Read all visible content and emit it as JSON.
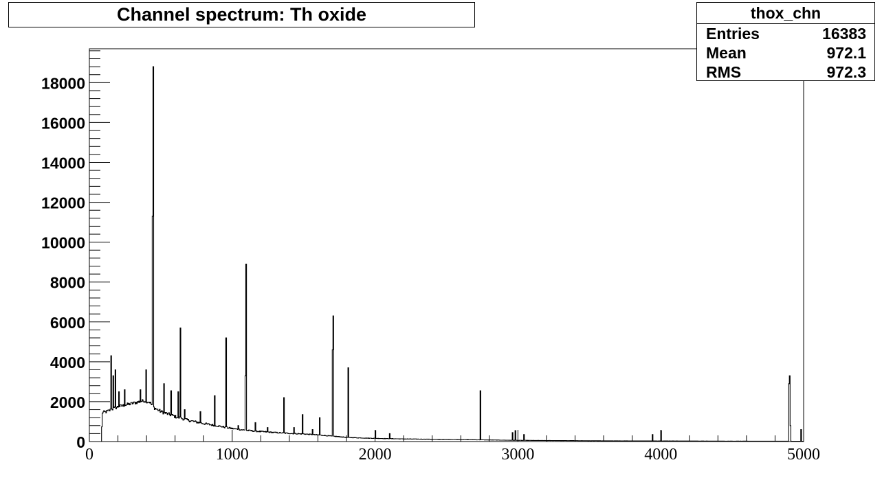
{
  "chart_data": {
    "type": "histogram",
    "title": "Channel spectrum: Th oxide",
    "xlabel": "",
    "ylabel": "",
    "xlim": [
      0,
      5000
    ],
    "ylim": [
      0,
      19700
    ],
    "xticks": [
      0,
      1000,
      2000,
      3000,
      4000,
      5000
    ],
    "yticks": [
      0,
      2000,
      4000,
      6000,
      8000,
      10000,
      12000,
      14000,
      16000,
      18000
    ],
    "xtick_labels": [
      "0",
      "1000",
      "2000",
      "3000",
      "4000",
      "5000"
    ],
    "ytick_labels": [
      "0",
      "2000",
      "4000",
      "6000",
      "8000",
      "10000",
      "12000",
      "14000",
      "16000",
      "18000"
    ],
    "grid": false,
    "continuum": [
      [
        0,
        0
      ],
      [
        80,
        0
      ],
      [
        90,
        1450
      ],
      [
        120,
        1500
      ],
      [
        150,
        1600
      ],
      [
        200,
        1750
      ],
      [
        260,
        1850
      ],
      [
        320,
        1950
      ],
      [
        380,
        2050
      ],
      [
        420,
        1980
      ],
      [
        450,
        1700
      ],
      [
        500,
        1500
      ],
      [
        600,
        1250
      ],
      [
        700,
        1050
      ],
      [
        800,
        900
      ],
      [
        900,
        780
      ],
      [
        1000,
        650
      ],
      [
        1100,
        560
      ],
      [
        1200,
        500
      ],
      [
        1300,
        450
      ],
      [
        1400,
        410
      ],
      [
        1500,
        380
      ],
      [
        1600,
        330
      ],
      [
        1700,
        270
      ],
      [
        1800,
        210
      ],
      [
        1900,
        180
      ],
      [
        2000,
        160
      ],
      [
        2200,
        130
      ],
      [
        2500,
        110
      ],
      [
        2800,
        80
      ],
      [
        3000,
        60
      ],
      [
        3500,
        40
      ],
      [
        4000,
        30
      ],
      [
        4500,
        22
      ],
      [
        4880,
        20
      ],
      [
        5000,
        15
      ]
    ],
    "peaks": [
      {
        "x": 148,
        "y": 4300
      },
      {
        "x": 165,
        "y": 3300
      },
      {
        "x": 178,
        "y": 3600
      },
      {
        "x": 205,
        "y": 2500
      },
      {
        "x": 245,
        "y": 2600
      },
      {
        "x": 355,
        "y": 2600
      },
      {
        "x": 395,
        "y": 3600
      },
      {
        "x": 440,
        "y": 11300
      },
      {
        "x": 445,
        "y": 18800
      },
      {
        "x": 520,
        "y": 2900
      },
      {
        "x": 570,
        "y": 2550
      },
      {
        "x": 618,
        "y": 2500
      },
      {
        "x": 636,
        "y": 5700
      },
      {
        "x": 665,
        "y": 1600
      },
      {
        "x": 775,
        "y": 1500
      },
      {
        "x": 875,
        "y": 2300
      },
      {
        "x": 955,
        "y": 5200
      },
      {
        "x": 1040,
        "y": 800
      },
      {
        "x": 1090,
        "y": 3300
      },
      {
        "x": 1095,
        "y": 8900
      },
      {
        "x": 1160,
        "y": 950
      },
      {
        "x": 1245,
        "y": 700
      },
      {
        "x": 1360,
        "y": 2200
      },
      {
        "x": 1430,
        "y": 700
      },
      {
        "x": 1490,
        "y": 1350
      },
      {
        "x": 1560,
        "y": 600
      },
      {
        "x": 1610,
        "y": 1200
      },
      {
        "x": 1700,
        "y": 4600
      },
      {
        "x": 1705,
        "y": 6300
      },
      {
        "x": 1810,
        "y": 3700
      },
      {
        "x": 2000,
        "y": 550
      },
      {
        "x": 2100,
        "y": 400
      },
      {
        "x": 2735,
        "y": 2550
      },
      {
        "x": 2960,
        "y": 450
      },
      {
        "x": 2980,
        "y": 550
      },
      {
        "x": 3040,
        "y": 350
      },
      {
        "x": 3940,
        "y": 350
      },
      {
        "x": 4000,
        "y": 550
      },
      {
        "x": 4895,
        "y": 2900
      },
      {
        "x": 4900,
        "y": 3300
      },
      {
        "x": 4905,
        "y": 800
      },
      {
        "x": 4980,
        "y": 600
      }
    ],
    "stats": {
      "name": "thox_chn",
      "rows": [
        {
          "label": "Entries",
          "value": "16383"
        },
        {
          "label": "Mean",
          "value": "972.1"
        },
        {
          "label": "RMS",
          "value": "972.3"
        }
      ]
    },
    "colors": {
      "line": "#000000",
      "frame": "#000000",
      "background": "#ffffff"
    }
  }
}
